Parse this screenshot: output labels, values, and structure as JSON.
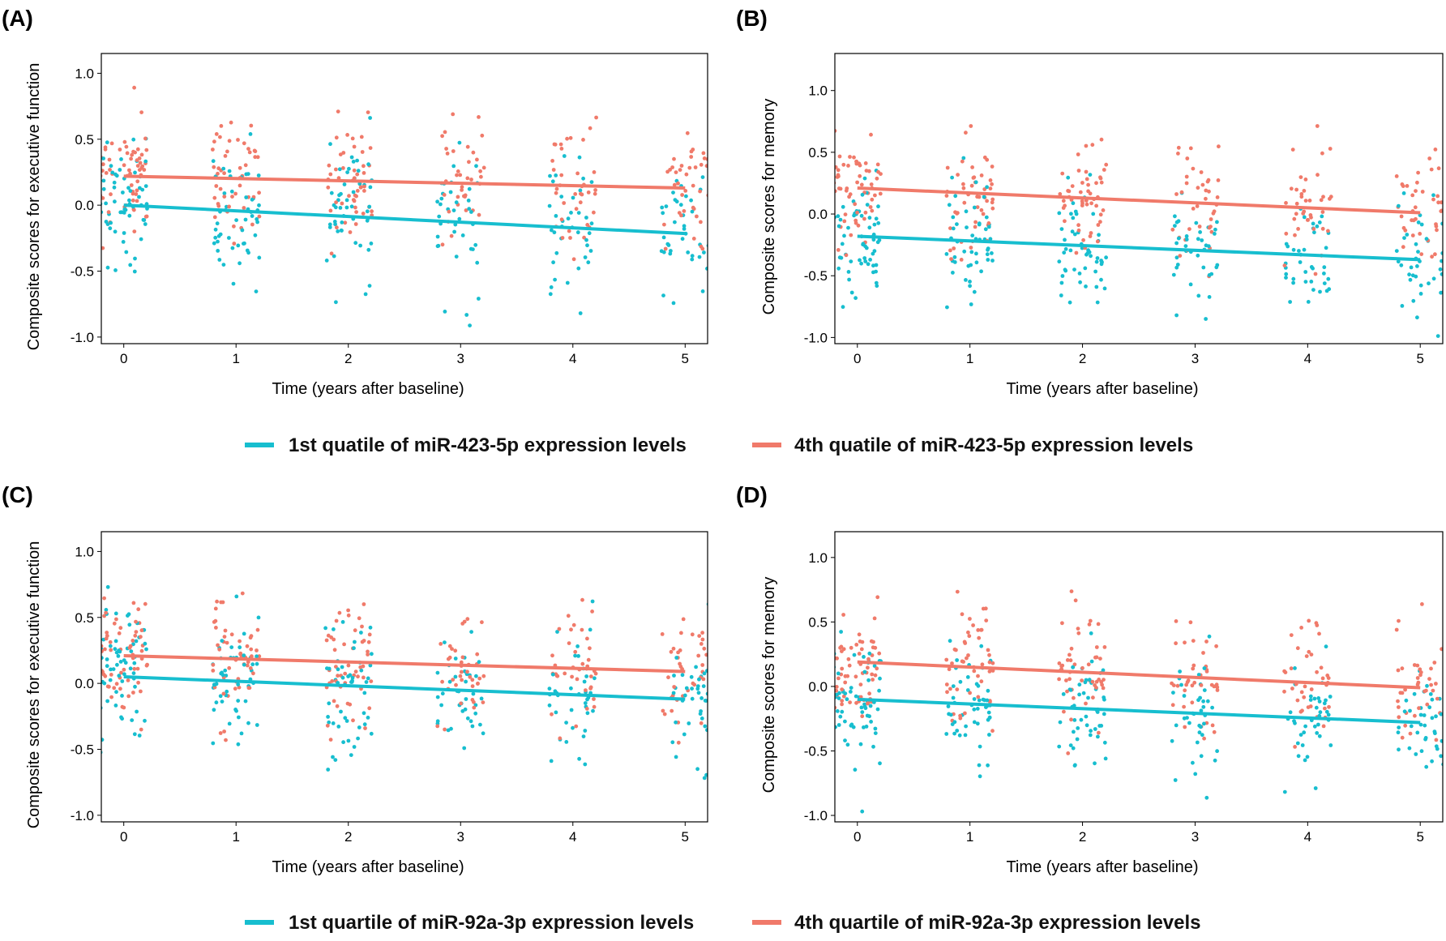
{
  "figure": {
    "legend_top": [
      {
        "label": "1st quatile of miR-423-5p expression levels",
        "color": "#17becf"
      },
      {
        "label": "4th quatile of miR-423-5p expression levels",
        "color": "#f07a6a"
      }
    ],
    "legend_bottom": [
      {
        "label": "1st quartile of miR-92a-3p expression levels",
        "color": "#17becf"
      },
      {
        "label": "4th quartile of miR-92a-3p expression levels",
        "color": "#f07a6a"
      }
    ]
  },
  "chart_data": [
    {
      "panel": "(A)",
      "type": "scatter",
      "xlabel": "Time (years after baseline)",
      "ylabel": "Composite scores for executive function",
      "xlim": [
        -0.2,
        5.2
      ],
      "ylim": [
        -1.05,
        1.15
      ],
      "xticks": [
        "0",
        "1",
        "2",
        "3",
        "4",
        "5"
      ],
      "yticks": [
        "1.0",
        "0.5",
        "0.0",
        "-0.5",
        "-1.0"
      ],
      "series": [
        {
          "name": "1st quatile of miR-423-5p expression levels",
          "color": "#17becf",
          "intercept": 0.0,
          "slope": -0.043,
          "spread": 0.27
        },
        {
          "name": "4th quatile of miR-423-5p expression levels",
          "color": "#f07a6a",
          "intercept": 0.22,
          "slope": -0.018,
          "spread": 0.24
        }
      ]
    },
    {
      "panel": "(B)",
      "type": "scatter",
      "xlabel": "Time (years after baseline)",
      "ylabel": "Composite scores for memory",
      "xlim": [
        -0.2,
        5.2
      ],
      "ylim": [
        -1.05,
        1.3
      ],
      "xticks": [
        "0",
        "1",
        "2",
        "3",
        "4",
        "5"
      ],
      "yticks": [
        "1.0",
        "0.5",
        "0.0",
        "-0.5",
        "-1.0"
      ],
      "series": [
        {
          "name": "1st quatile of miR-423-5p expression levels",
          "color": "#17becf",
          "intercept": -0.18,
          "slope": -0.038,
          "spread": 0.24
        },
        {
          "name": "4th quatile of miR-423-5p expression levels",
          "color": "#f07a6a",
          "intercept": 0.21,
          "slope": -0.04,
          "spread": 0.24
        }
      ]
    },
    {
      "panel": "(C)",
      "type": "scatter",
      "xlabel": "Time (years after baseline)",
      "ylabel": "Composite scores for executive function",
      "xlim": [
        -0.2,
        5.2
      ],
      "ylim": [
        -1.05,
        1.15
      ],
      "xticks": [
        "0",
        "1",
        "2",
        "3",
        "4",
        "5"
      ],
      "yticks": [
        "1.0",
        "0.5",
        "0.0",
        "-0.5",
        "-1.0"
      ],
      "series": [
        {
          "name": "1st quartile of miR-92a-3p expression levels",
          "color": "#17becf",
          "intercept": 0.05,
          "slope": -0.034,
          "spread": 0.26
        },
        {
          "name": "4th quartile of miR-92a-3p expression levels",
          "color": "#f07a6a",
          "intercept": 0.21,
          "slope": -0.024,
          "spread": 0.24
        }
      ]
    },
    {
      "panel": "(D)",
      "type": "scatter",
      "xlabel": "Time (years after baseline)",
      "ylabel": "Composite scores for memory",
      "xlim": [
        -0.2,
        5.2
      ],
      "ylim": [
        -1.05,
        1.2
      ],
      "xticks": [
        "0",
        "1",
        "2",
        "3",
        "4",
        "5"
      ],
      "yticks": [
        "1.0",
        "0.5",
        "0.0",
        "-0.5",
        "-1.0"
      ],
      "series": [
        {
          "name": "1st quartile of miR-92a-3p expression levels",
          "color": "#17becf",
          "intercept": -0.1,
          "slope": -0.036,
          "spread": 0.24
        },
        {
          "name": "4th quartile of miR-92a-3p expression levels",
          "color": "#f07a6a",
          "intercept": 0.19,
          "slope": -0.04,
          "spread": 0.24
        }
      ]
    }
  ]
}
